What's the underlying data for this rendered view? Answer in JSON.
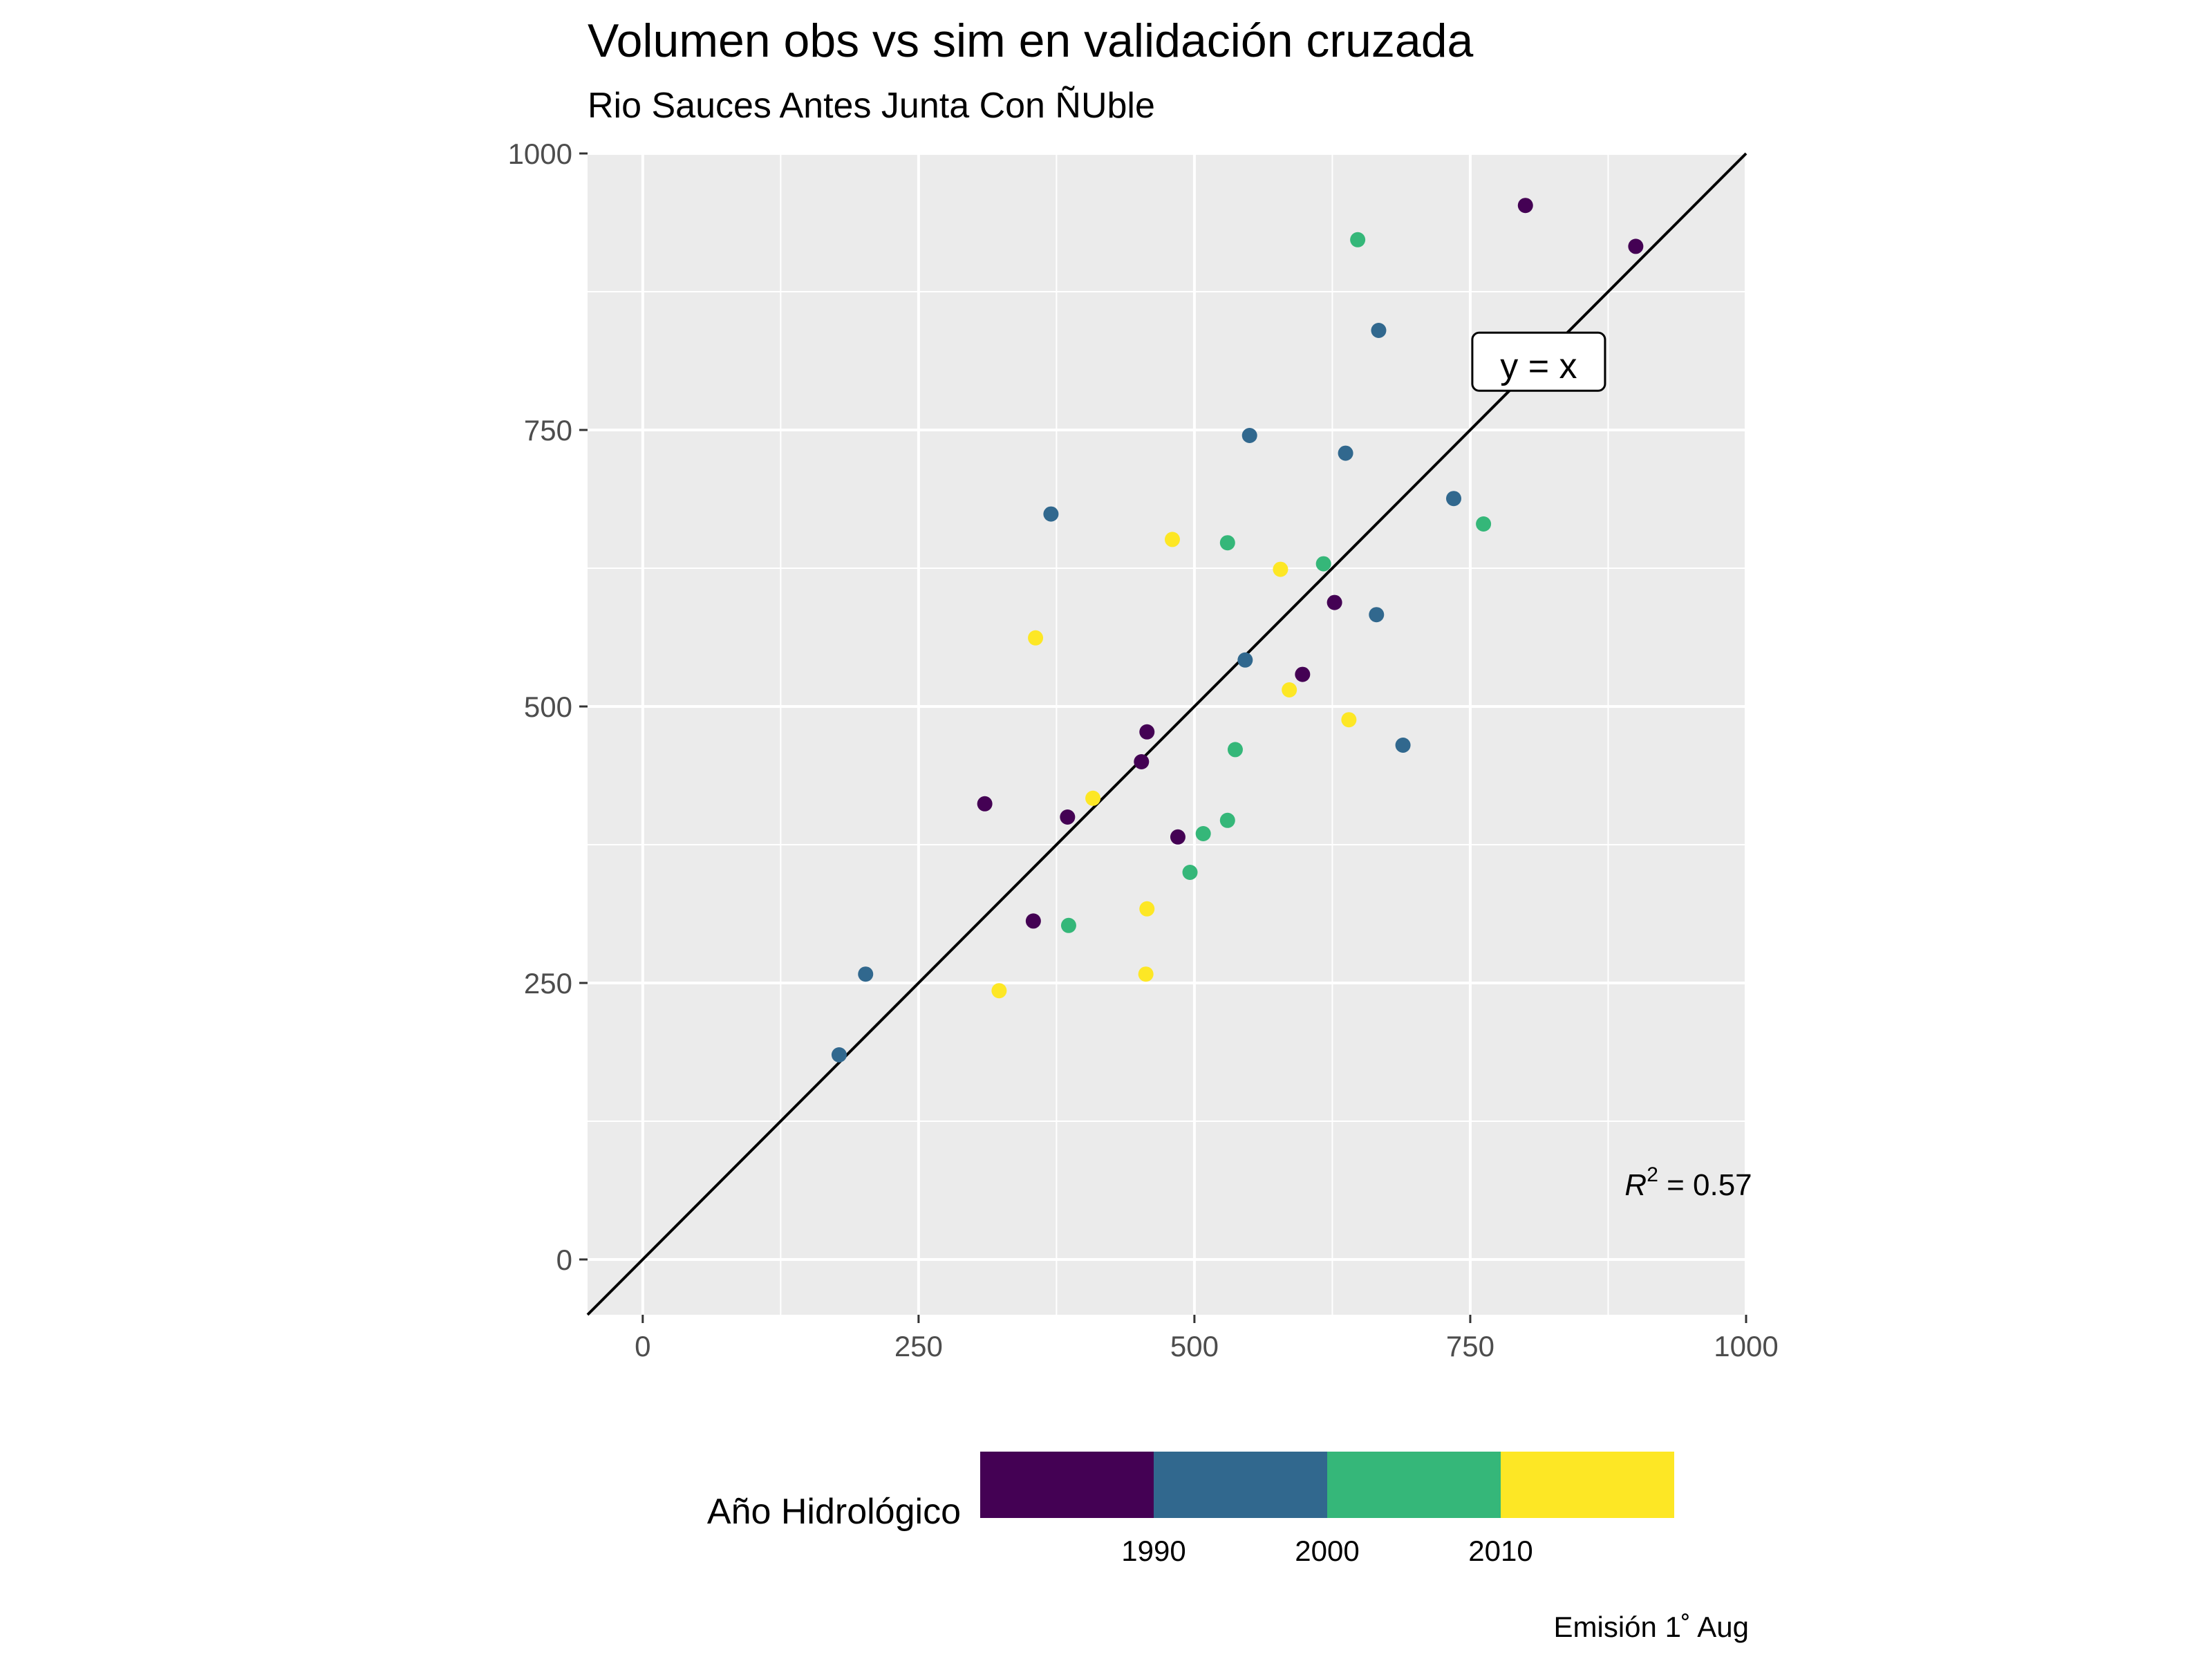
{
  "chart_data": {
    "type": "scatter",
    "title": "Volumen obs vs sim en validación cruzada",
    "subtitle": "Rio Sauces Antes Junta Con ÑUble",
    "xlabel": "",
    "ylabel": "",
    "xlim": [
      -50,
      1000
    ],
    "ylim": [
      -50,
      1000
    ],
    "x_ticks": [
      0,
      250,
      500,
      750,
      1000
    ],
    "y_ticks": [
      0,
      250,
      500,
      750,
      1000
    ],
    "grid": true,
    "reference_line": {
      "label": "y = x",
      "label_x": 812,
      "label_y": 808
    },
    "annotation": {
      "r2_label": "R",
      "r2_exp": "2",
      "r2_rest": " = 0.57",
      "x": 890,
      "y": 68
    },
    "legend": {
      "title": "Año Hidrológico",
      "position": "bottom",
      "colors": [
        "#440154",
        "#31688e",
        "#35b779",
        "#fde725"
      ],
      "labels": [
        "1990",
        "2000",
        "2010"
      ]
    },
    "caption": "Emisión 1˚ Aug",
    "points": [
      {
        "x": 800,
        "y": 953,
        "year_group": 0
      },
      {
        "x": 900,
        "y": 916,
        "year_group": 0
      },
      {
        "x": 648,
        "y": 922,
        "year_group": 2
      },
      {
        "x": 667,
        "y": 840,
        "year_group": 1
      },
      {
        "x": 550,
        "y": 745,
        "year_group": 1
      },
      {
        "x": 637,
        "y": 729,
        "year_group": 1
      },
      {
        "x": 735,
        "y": 688,
        "year_group": 1
      },
      {
        "x": 370,
        "y": 674,
        "year_group": 1
      },
      {
        "x": 762,
        "y": 665,
        "year_group": 2
      },
      {
        "x": 480,
        "y": 651,
        "year_group": 3
      },
      {
        "x": 530,
        "y": 648,
        "year_group": 2
      },
      {
        "x": 578,
        "y": 624,
        "year_group": 3
      },
      {
        "x": 617,
        "y": 629,
        "year_group": 2
      },
      {
        "x": 627,
        "y": 594,
        "year_group": 0
      },
      {
        "x": 665,
        "y": 583,
        "year_group": 1
      },
      {
        "x": 356,
        "y": 562,
        "year_group": 3
      },
      {
        "x": 546,
        "y": 542,
        "year_group": 1
      },
      {
        "x": 598,
        "y": 529,
        "year_group": 0
      },
      {
        "x": 586,
        "y": 515,
        "year_group": 3
      },
      {
        "x": 640,
        "y": 488,
        "year_group": 3
      },
      {
        "x": 457,
        "y": 477,
        "year_group": 0
      },
      {
        "x": 689,
        "y": 465,
        "year_group": 1
      },
      {
        "x": 537,
        "y": 461,
        "year_group": 2
      },
      {
        "x": 452,
        "y": 450,
        "year_group": 0
      },
      {
        "x": 408,
        "y": 417,
        "year_group": 3
      },
      {
        "x": 310,
        "y": 412,
        "year_group": 0
      },
      {
        "x": 385,
        "y": 400,
        "year_group": 0
      },
      {
        "x": 530,
        "y": 397,
        "year_group": 2
      },
      {
        "x": 508,
        "y": 385,
        "year_group": 2
      },
      {
        "x": 485,
        "y": 382,
        "year_group": 0
      },
      {
        "x": 496,
        "y": 350,
        "year_group": 2
      },
      {
        "x": 457,
        "y": 317,
        "year_group": 3
      },
      {
        "x": 354,
        "y": 306,
        "year_group": 0
      },
      {
        "x": 386,
        "y": 302,
        "year_group": 2
      },
      {
        "x": 202,
        "y": 258,
        "year_group": 1
      },
      {
        "x": 456,
        "y": 258,
        "year_group": 3
      },
      {
        "x": 323,
        "y": 243,
        "year_group": 3
      },
      {
        "x": 178,
        "y": 185,
        "year_group": 1
      }
    ]
  }
}
